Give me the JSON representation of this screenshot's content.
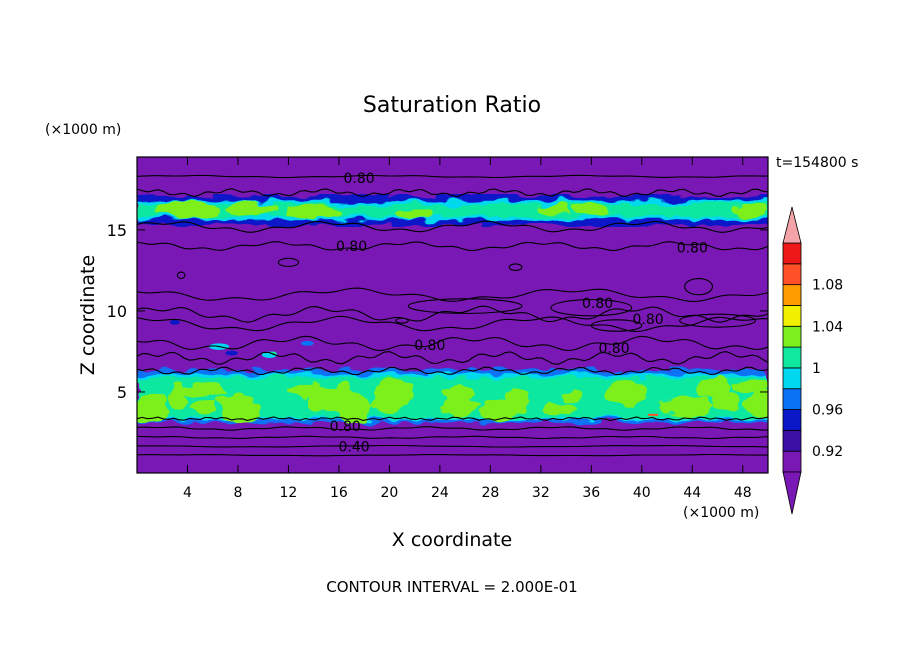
{
  "chart_data": {
    "type": "heatmap",
    "title": "Saturation Ratio",
    "xlabel": "X coordinate",
    "ylabel": "Z coordinate",
    "x_unit": "(×1000 m)",
    "y_unit": "(×1000 m)",
    "time_label": "t=154800 s",
    "footer": "CONTOUR INTERVAL = 2.000E-01",
    "xlim": [
      0,
      50
    ],
    "ylim": [
      0,
      19.5
    ],
    "x_ticks": [
      4,
      8,
      12,
      16,
      20,
      24,
      28,
      32,
      36,
      40,
      44,
      48
    ],
    "y_ticks": [
      5,
      10,
      15
    ],
    "colorbar": {
      "levels": [
        0.92,
        0.94,
        0.96,
        0.98,
        1.0,
        1.02,
        1.04,
        1.06,
        1.08,
        1.1
      ],
      "tick_labels": [
        "0.92",
        "0.96",
        "1",
        "1.04",
        "1.08"
      ],
      "tick_values": [
        0.92,
        0.96,
        1.0,
        1.04,
        1.08
      ],
      "colors": [
        "#7a18b5",
        "#3a0fa6",
        "#0a18c8",
        "#0a72f5",
        "#00d8f0",
        "#10e8a0",
        "#7df01e",
        "#f0f000",
        "#ff9c00",
        "#ff5028",
        "#ee1818",
        "#f4a4a8"
      ],
      "under_color": "#7a18b5",
      "over_color": "#f4a4a8"
    },
    "background_color": "#7a18b5",
    "contour_labels": [
      {
        "value": "0.80",
        "x": 17.6,
        "z": 18.2
      },
      {
        "value": "0.80",
        "x": 17.0,
        "z": 14.0
      },
      {
        "value": "0.80",
        "x": 44.0,
        "z": 13.9
      },
      {
        "value": "0.80",
        "x": 36.5,
        "z": 10.5
      },
      {
        "value": "0.80",
        "x": 40.5,
        "z": 9.5
      },
      {
        "value": "0.80",
        "x": 23.2,
        "z": 7.9
      },
      {
        "value": "0.80",
        "x": 37.8,
        "z": 7.7
      },
      {
        "value": "0.80",
        "x": 16.5,
        "z": 2.9
      },
      {
        "value": "0.40",
        "x": 17.2,
        "z": 1.65
      }
    ]
  }
}
